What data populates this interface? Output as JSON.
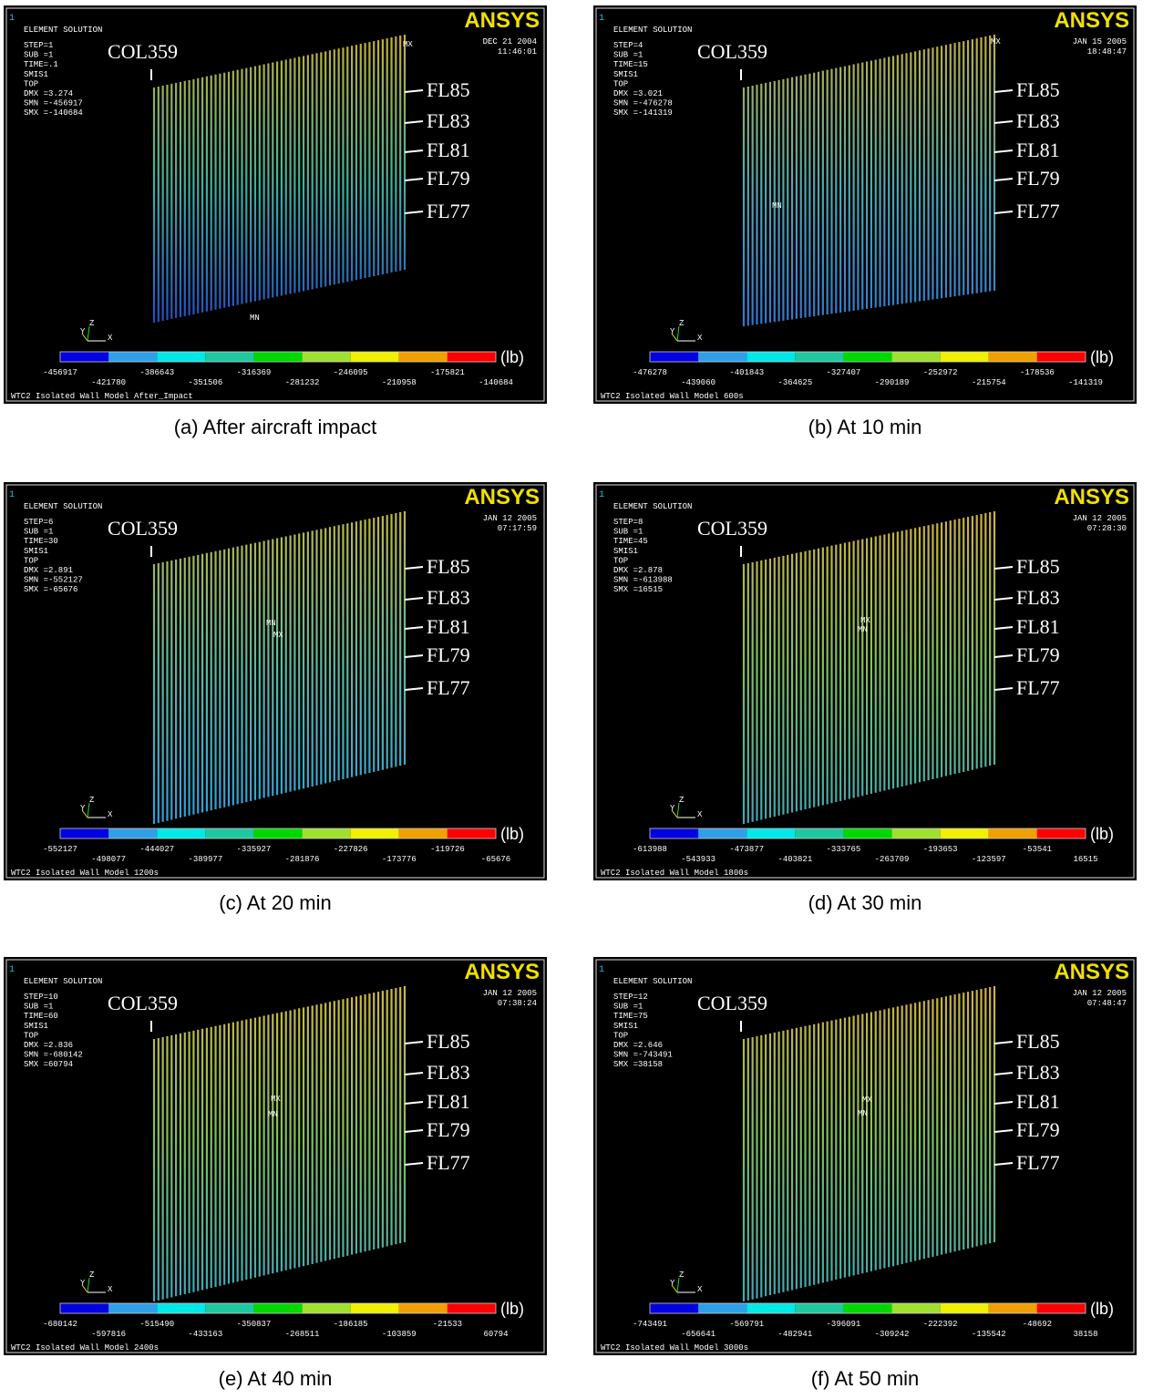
{
  "panels": [
    {
      "id_label": "1",
      "solution": "ELEMENT SOLUTION",
      "info": [
        "STEP=1",
        "SUB =1",
        "TIME=.1",
        "SMIS1",
        "TOP",
        "DMX =3.274",
        "SMN =-456917",
        "SMX =-140684"
      ],
      "date": "DEC 21 2004",
      "time": "11:46:01",
      "logo": "ANSYS",
      "column": "COL359",
      "floors": [
        "FL85",
        "FL83",
        "FL81",
        "FL79",
        "FL77"
      ],
      "markers": [
        "MX",
        "MN"
      ],
      "axes": [
        "Y",
        "Z",
        "X"
      ],
      "legend_values": [
        -456917,
        -421780,
        -386643,
        -351506,
        -316369,
        -281232,
        -246095,
        -210958,
        -175821,
        -140684
      ],
      "unit": "(lb)",
      "footer": "WTC2 Isolated Wall Model After_Impact",
      "caption": "(a) After aircraft impact"
    },
    {
      "id_label": "1",
      "solution": "ELEMENT SOLUTION",
      "info": [
        "STEP=4",
        "SUB =1",
        "TIME=15",
        "SMIS1",
        "TOP",
        "DMX =3.021",
        "SMN =-476278",
        "SMX =-141319"
      ],
      "date": "JAN 15 2005",
      "time": "18:48:47",
      "logo": "ANSYS",
      "column": "COL359",
      "floors": [
        "FL85",
        "FL83",
        "FL81",
        "FL79",
        "FL77"
      ],
      "markers": [
        "MX",
        "MN"
      ],
      "axes": [
        "Y",
        "Z",
        "X"
      ],
      "legend_values": [
        -476278,
        -439060,
        -401843,
        -364625,
        -327407,
        -290189,
        -252972,
        -215754,
        -178536,
        -141319
      ],
      "unit": "(lb)",
      "footer": "WTC2 Isolated Wall Model 600s",
      "caption": "(b) At 10 min"
    },
    {
      "id_label": "1",
      "solution": "ELEMENT SOLUTION",
      "info": [
        "STEP=6",
        "SUB =1",
        "TIME=30",
        "SMIS1",
        "TOP",
        "DMX =2.891",
        "SMN =-552127",
        "SMX =-65676"
      ],
      "date": "JAN 12 2005",
      "time": "07:17:59",
      "logo": "ANSYS",
      "column": "COL359",
      "floors": [
        "FL85",
        "FL83",
        "FL81",
        "FL79",
        "FL77"
      ],
      "markers": [
        "MN",
        "MX"
      ],
      "axes": [
        "Y",
        "Z",
        "X"
      ],
      "legend_values": [
        -552127,
        -498077,
        -444027,
        -389977,
        -335927,
        -281876,
        -227826,
        -173776,
        -119726,
        -65676
      ],
      "unit": "(lb)",
      "footer": "WTC2 Isolated Wall Model 1200s",
      "caption": "(c) At 20 min"
    },
    {
      "id_label": "1",
      "solution": "ELEMENT SOLUTION",
      "info": [
        "STEP=8",
        "SUB =1",
        "TIME=45",
        "SMIS1",
        "TOP",
        "DMX =2.878",
        "SMN =-613988",
        "SMX =16515"
      ],
      "date": "JAN 12 2005",
      "time": "07:28:30",
      "logo": "ANSYS",
      "column": "COL359",
      "floors": [
        "FL85",
        "FL83",
        "FL81",
        "FL79",
        "FL77"
      ],
      "markers": [
        "MX",
        "MN"
      ],
      "axes": [
        "Y",
        "Z",
        "X"
      ],
      "legend_values": [
        -613988,
        -543933,
        -473877,
        -403821,
        -333765,
        -263709,
        -193653,
        -123597,
        -53541,
        16515
      ],
      "unit": "(lb)",
      "footer": "WTC2 Isolated Wall Model 1800s",
      "caption": "(d) At 30 min"
    },
    {
      "id_label": "1",
      "solution": "ELEMENT SOLUTION",
      "info": [
        "STEP=10",
        "SUB =1",
        "TIME=60",
        "SMIS1",
        "TOP",
        "DMX =2.836",
        "SMN =-680142",
        "SMX =60794"
      ],
      "date": "JAN 12 2005",
      "time": "07:38:24",
      "logo": "ANSYS",
      "column": "COL359",
      "floors": [
        "FL85",
        "FL83",
        "FL81",
        "FL79",
        "FL77"
      ],
      "markers": [
        "MX",
        "MN"
      ],
      "axes": [
        "Y",
        "Z",
        "X"
      ],
      "legend_values": [
        -680142,
        -597816,
        -515490,
        -433163,
        -350837,
        -268511,
        -186185,
        -103859,
        -21533,
        60794
      ],
      "unit": "(lb)",
      "footer": "WTC2 Isolated Wall Model 2400s",
      "caption": "(e) At 40 min"
    },
    {
      "id_label": "1",
      "solution": "ELEMENT SOLUTION",
      "info": [
        "STEP=12",
        "SUB =1",
        "TIME=75",
        "SMIS1",
        "TOP",
        "DMX =2.646",
        "SMN =-743491",
        "SMX =38158"
      ],
      "date": "JAN 12 2005",
      "time": "07:48:47",
      "logo": "ANSYS",
      "column": "COL359",
      "floors": [
        "FL85",
        "FL83",
        "FL81",
        "FL79",
        "FL77"
      ],
      "markers": [
        "MX",
        "MN"
      ],
      "axes": [
        "Y",
        "Z",
        "X"
      ],
      "legend_values": [
        -743491,
        -656641,
        -569791,
        -482941,
        -396091,
        -309242,
        -222392,
        -135542,
        -48692,
        38158
      ],
      "unit": "(lb)",
      "footer": "WTC2 Isolated Wall Model 3000s",
      "caption": "(f) At 50 min"
    }
  ]
}
